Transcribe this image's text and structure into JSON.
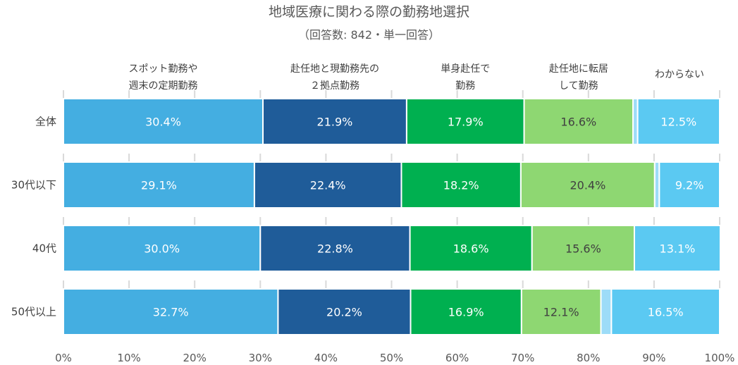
{
  "title": "地域医療に関わる際の勤務地選択",
  "subtitle": "（回答数: 842・単一回答）",
  "chart_data": {
    "type": "bar",
    "orientation": "horizontal",
    "stacked": true,
    "normalized": true,
    "categories": [
      "全体",
      "30代以下",
      "40代",
      "50代以上"
    ],
    "series": [
      {
        "name": "スポット勤務や\n週末の定期勤務",
        "color": "#44AEE1",
        "values": [
          30.4,
          29.1,
          30.0,
          32.7
        ]
      },
      {
        "name": "赴任地と現勤務先の\n２拠点勤務",
        "color": "#1F5C99",
        "values": [
          21.9,
          22.4,
          22.8,
          20.2
        ]
      },
      {
        "name": "単身赴任で\n勤務",
        "color": "#00B050",
        "values": [
          17.9,
          18.2,
          18.6,
          16.9
        ]
      },
      {
        "name": "赴任地に転居\nして勤務",
        "color": "#8ED772",
        "values": [
          16.6,
          20.4,
          15.6,
          12.1
        ]
      },
      {
        "name": "",
        "color": "#9DDCF8",
        "values": [
          0.7,
          0.7,
          0.0,
          1.6
        ]
      },
      {
        "name": "わからない",
        "color": "#5BC9F2",
        "values": [
          12.5,
          9.2,
          13.1,
          16.5
        ]
      }
    ],
    "xlim": [
      0,
      100
    ],
    "xticks": [
      "0%",
      "10%",
      "20%",
      "30%",
      "40%",
      "50%",
      "60%",
      "70%",
      "80%",
      "90%",
      "100%"
    ],
    "grid": true,
    "legend": "top, labels above columns"
  }
}
